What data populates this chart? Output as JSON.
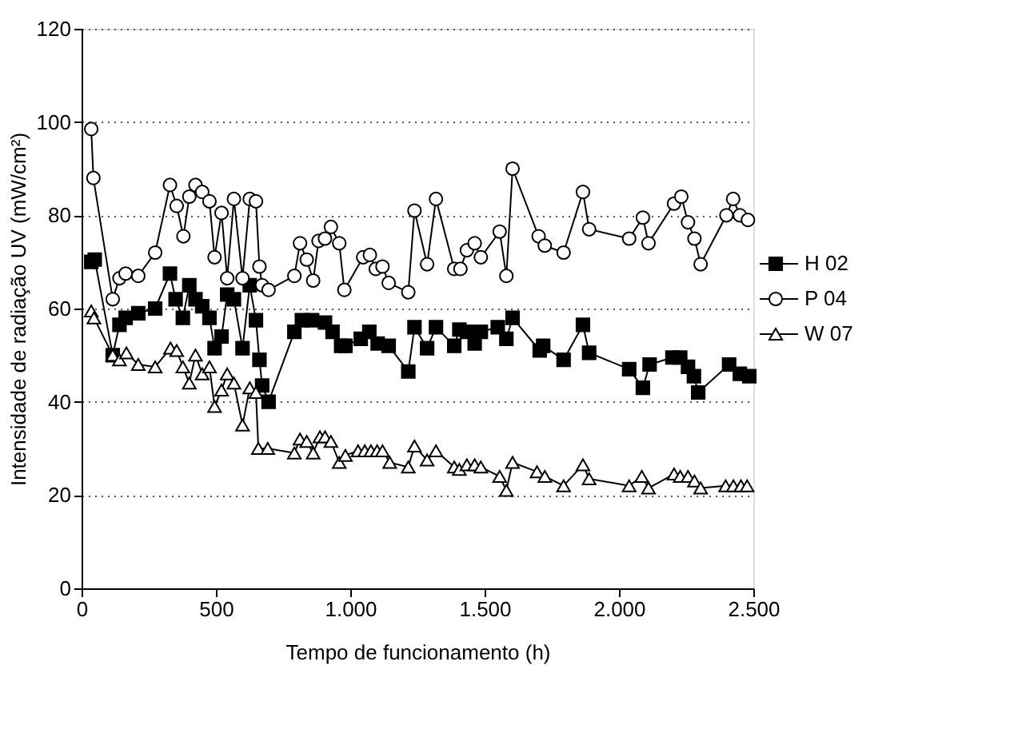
{
  "chart_data": {
    "type": "line",
    "xlabel": "Tempo de funcionamento (h)",
    "ylabel": "Intensidade de radiação UV (mW/cm²)",
    "xlim": [
      0,
      2500
    ],
    "xticks": [
      0,
      500,
      {
        "value": 1000,
        "label": "1.000"
      },
      {
        "value": 1500,
        "label": "1.500"
      },
      {
        "value": 2000,
        "label": "2.000"
      },
      {
        "value": 2500,
        "label": "2.500"
      }
    ],
    "ylim": [
      0,
      120
    ],
    "yticks": [
      0,
      20,
      40,
      60,
      80,
      100,
      120
    ],
    "grid": "y",
    "legend": "right",
    "line_style": "solid",
    "series": [
      {
        "name": "H 02",
        "color": "#000000",
        "marker": "square",
        "x": [
          36,
          49,
          116,
          141,
          164,
          211,
          274,
          329,
          350,
          377,
          401,
          424,
          449,
          476,
          495,
          521,
          542,
          567,
          599,
          626,
          649,
          662,
          672,
          696,
          792,
          820,
          858,
          906,
          934,
          966,
          982,
          1039,
          1071,
          1102,
          1143,
          1216,
          1239,
          1286,
          1319,
          1387,
          1406,
          1434,
          1463,
          1486,
          1549,
          1581,
          1604,
          1705,
          1718,
          1794,
          1866,
          1889,
          2038,
          2089,
          2114,
          2199,
          2228,
          2257,
          2279,
          2295,
          2410,
          2450,
          2485
        ],
        "values": [
          70,
          70.5,
          50,
          56.5,
          58,
          59,
          60,
          67.5,
          62,
          58,
          65,
          62,
          60.5,
          58,
          51.5,
          54,
          63,
          62,
          51.5,
          65,
          57.5,
          49,
          43.5,
          40,
          55,
          57.5,
          57.5,
          57,
          55,
          52,
          52,
          53.5,
          55,
          52.5,
          52,
          46.5,
          56,
          51.5,
          56,
          52,
          55.5,
          55,
          52.5,
          55,
          56,
          53.5,
          58,
          51,
          52,
          49,
          56.5,
          50.5,
          47,
          43,
          48,
          49.5,
          49.5,
          47.5,
          45.5,
          42,
          48,
          46,
          45.5
        ]
      },
      {
        "name": "P 04",
        "color": "#ffffff",
        "marker": "circle",
        "x": [
          36,
          44,
          116,
          141,
          164,
          211,
          274,
          329,
          354,
          379,
          401,
          424,
          449,
          476,
          495,
          521,
          542,
          567,
          599,
          626,
          649,
          662,
          672,
          696,
          792,
          813,
          838,
          862,
          882,
          906,
          928,
          959,
          978,
          1048,
          1073,
          1095,
          1120,
          1143,
          1216,
          1239,
          1286,
          1319,
          1387,
          1410,
          1434,
          1463,
          1486,
          1556,
          1581,
          1604,
          1701,
          1724,
          1794,
          1866,
          1889,
          2038,
          2089,
          2110,
          2205,
          2232,
          2257,
          2281,
          2304,
          2400,
          2425,
          2450,
          2480
        ],
        "values": [
          98.5,
          88,
          62,
          66.5,
          67.5,
          67,
          72,
          86.5,
          82,
          75.5,
          84,
          86.5,
          85,
          83,
          71,
          80.5,
          66.5,
          83.5,
          66.5,
          83.5,
          83,
          69,
          65,
          64,
          67,
          74,
          70.5,
          66,
          74.5,
          75,
          77.5,
          74,
          64,
          71,
          71.5,
          68.5,
          69,
          65.5,
          63.5,
          81,
          69.5,
          83.5,
          68.5,
          68.5,
          72.5,
          74,
          71,
          76.5,
          67,
          90,
          75.5,
          73.5,
          72,
          85,
          77,
          75,
          79.5,
          74,
          82.5,
          84,
          78.5,
          75,
          69.5,
          80,
          83.5,
          80,
          79
        ]
      },
      {
        "name": "W 07",
        "color": "#ffffff",
        "marker": "triangle",
        "x": [
          36,
          46,
          116,
          141,
          167,
          211,
          274,
          331,
          354,
          377,
          401,
          424,
          449,
          476,
          495,
          521,
          542,
          567,
          599,
          626,
          649,
          658,
          693,
          792,
          813,
          838,
          862,
          887,
          906,
          928,
          959,
          982,
          1029,
          1054,
          1077,
          1100,
          1120,
          1147,
          1216,
          1239,
          1286,
          1319,
          1387,
          1406,
          1434,
          1463,
          1486,
          1556,
          1581,
          1604,
          1695,
          1724,
          1794,
          1866,
          1889,
          2038,
          2085,
          2110,
          2205,
          2228,
          2257,
          2281,
          2304,
          2397,
          2426,
          2454,
          2477
        ],
        "values": [
          59.5,
          58,
          50,
          49,
          50.5,
          48,
          47.5,
          51.5,
          51,
          47.5,
          44,
          50,
          46,
          47.5,
          39,
          42.5,
          46,
          44,
          35,
          43,
          42,
          30,
          30,
          29,
          32,
          31.5,
          29,
          32.5,
          32.5,
          31.5,
          27,
          28.5,
          29.5,
          29.5,
          29.5,
          29.5,
          29.5,
          27,
          26,
          30.5,
          27.5,
          29.5,
          26,
          25.5,
          26.5,
          26.5,
          26,
          24,
          21,
          27,
          25,
          24,
          22,
          26.5,
          23.5,
          22,
          24,
          21.5,
          24.5,
          24,
          24,
          23,
          21.5,
          22,
          22,
          22,
          22
        ]
      }
    ]
  }
}
